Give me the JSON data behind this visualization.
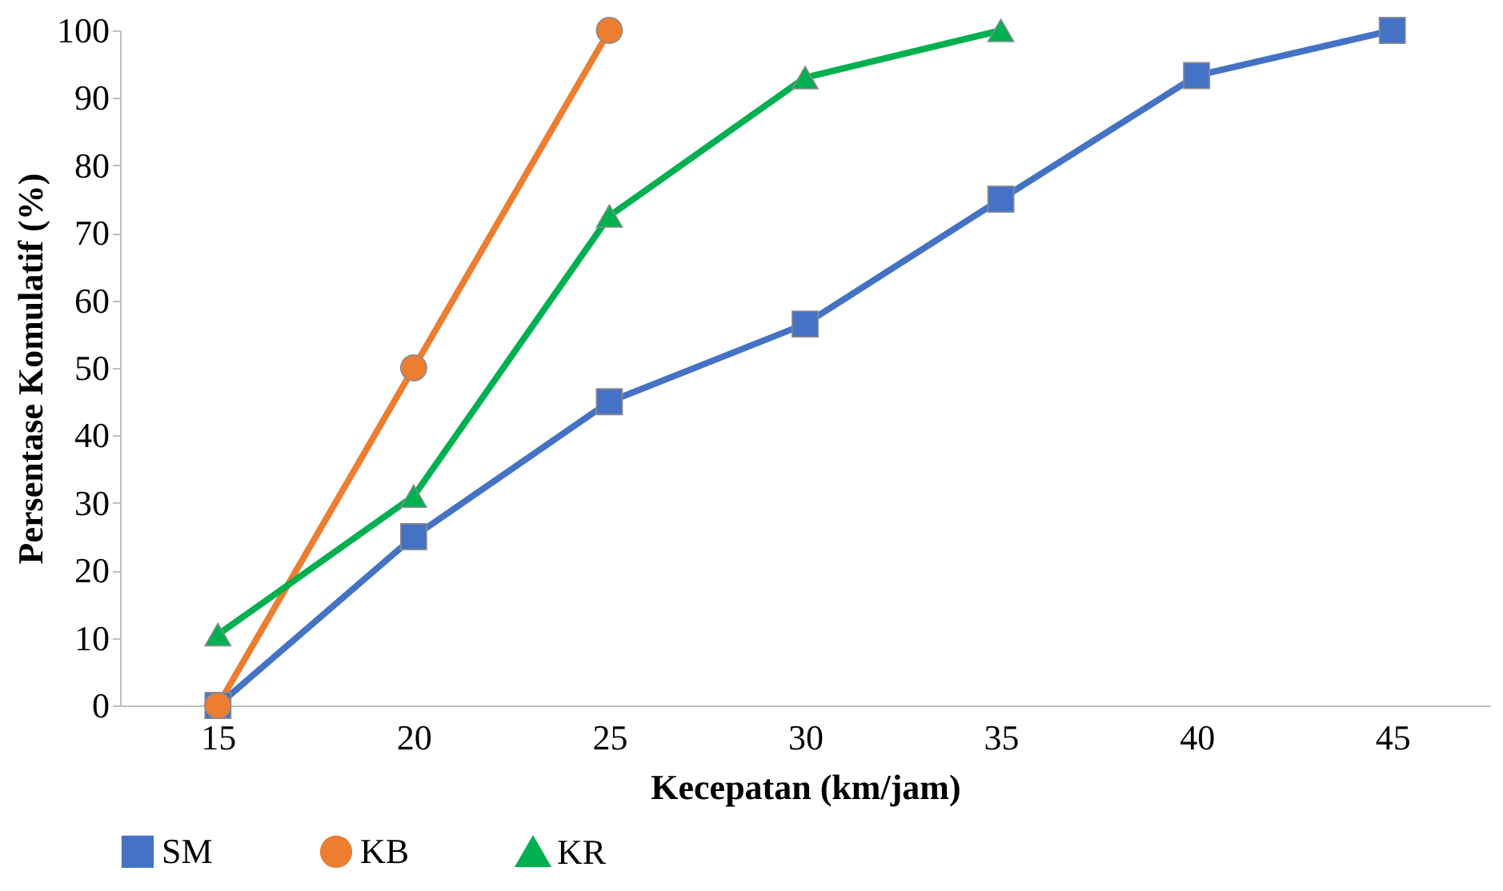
{
  "chart_data": {
    "type": "line",
    "xlabel": "Kecepatan (km/jam)",
    "ylabel": "Persentase Komulatif (%)",
    "categories": [
      "15",
      "20",
      "25",
      "30",
      "35",
      "40",
      "45"
    ],
    "series": [
      {
        "name": "SM",
        "color": "#4472c4",
        "marker": "square",
        "values": [
          0,
          25,
          45,
          56.5,
          75,
          93.3,
          100
        ]
      },
      {
        "name": "KB",
        "color": "#ed7d31",
        "marker": "circle",
        "values": [
          0,
          50,
          100,
          null,
          null,
          null,
          null
        ]
      },
      {
        "name": "KR",
        "color": "#00b050",
        "marker": "triangle",
        "values": [
          10.5,
          31,
          72.5,
          93,
          100,
          null,
          null
        ]
      }
    ],
    "ylim": [
      0,
      100
    ],
    "yticks": [
      0,
      10,
      20,
      30,
      40,
      50,
      60,
      70,
      80,
      90,
      100
    ],
    "grid": false,
    "legend": "bottom",
    "line_style": "solid"
  }
}
